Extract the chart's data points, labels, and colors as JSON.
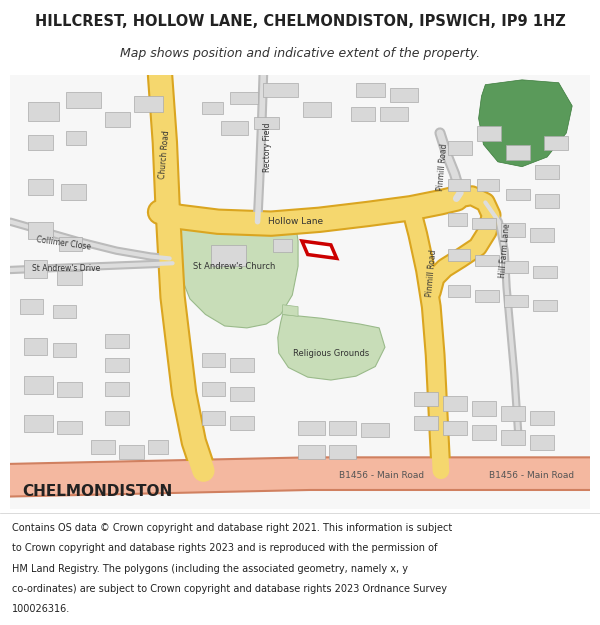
{
  "title": "HILLCREST, HOLLOW LANE, CHELMONDISTON, IPSWICH, IP9 1HZ",
  "subtitle": "Map shows position and indicative extent of the property.",
  "footer_lines": [
    "Contains OS data © Crown copyright and database right 2021. This information is subject",
    "to Crown copyright and database rights 2023 and is reproduced with the permission of",
    "HM Land Registry. The polygons (including the associated geometry, namely x, y",
    "co-ordinates) are subject to Crown copyright and database rights 2023 Ordnance Survey",
    "100026316."
  ],
  "map_bg": "#f7f7f7",
  "road_yellow": "#f5d76e",
  "road_yellow_border": "#daa520",
  "road_main_fill": "#f4b8a0",
  "road_main_border": "#d08060",
  "building_fill": "#d8d8d8",
  "building_border": "#aaaaaa",
  "green_light": "#c8ddb8",
  "highlight_green": "#5a9a5a",
  "red_outline": "#cc0000",
  "text_dark": "#333333"
}
